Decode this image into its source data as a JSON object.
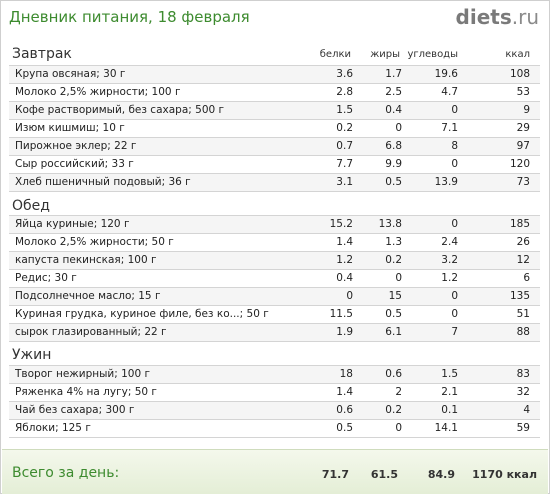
{
  "header": {
    "title": "Дневник питания, 18 февраля",
    "logo_main": "diets",
    "logo_tld": ".ru"
  },
  "columns": {
    "protein": "белки",
    "fat": "жиры",
    "carbs": "углеводы",
    "kcal": "ккал"
  },
  "sections": [
    {
      "title": "Завтрак",
      "rows": [
        {
          "name": "Крупа овсяная; 30 г",
          "protein": "3.6",
          "fat": "1.7",
          "carbs": "19.6",
          "kcal": "108"
        },
        {
          "name": "Молоко 2,5% жирности; 100 г",
          "protein": "2.8",
          "fat": "2.5",
          "carbs": "4.7",
          "kcal": "53"
        },
        {
          "name": "Кофе растворимый, без сахара; 500 г",
          "protein": "1.5",
          "fat": "0.4",
          "carbs": "0",
          "kcal": "9"
        },
        {
          "name": "Изюм кишмиш; 10 г",
          "protein": "0.2",
          "fat": "0",
          "carbs": "7.1",
          "kcal": "29"
        },
        {
          "name": "Пирожное эклер; 22 г",
          "protein": "0.7",
          "fat": "6.8",
          "carbs": "8",
          "kcal": "97"
        },
        {
          "name": "Сыр российский; 33 г",
          "protein": "7.7",
          "fat": "9.9",
          "carbs": "0",
          "kcal": "120"
        },
        {
          "name": "Хлеб пшеничный подовый; 36 г",
          "protein": "3.1",
          "fat": "0.5",
          "carbs": "13.9",
          "kcal": "73"
        }
      ]
    },
    {
      "title": "Обед",
      "rows": [
        {
          "name": "Яйца куриные; 120 г",
          "protein": "15.2",
          "fat": "13.8",
          "carbs": "0",
          "kcal": "185"
        },
        {
          "name": "Молоко 2,5% жирности; 50 г",
          "protein": "1.4",
          "fat": "1.3",
          "carbs": "2.4",
          "kcal": "26"
        },
        {
          "name": "капуста пекинская; 100 г",
          "protein": "1.2",
          "fat": "0.2",
          "carbs": "3.2",
          "kcal": "12"
        },
        {
          "name": "Редис; 30 г",
          "protein": "0.4",
          "fat": "0",
          "carbs": "1.2",
          "kcal": "6"
        },
        {
          "name": "Подсолнечное масло; 15 г",
          "protein": "0",
          "fat": "15",
          "carbs": "0",
          "kcal": "135"
        },
        {
          "name": "Куриная грудка, куриное филе, без ко...; 50 г",
          "protein": "11.5",
          "fat": "0.5",
          "carbs": "0",
          "kcal": "51"
        },
        {
          "name": "сырок глазированный; 22 г",
          "protein": "1.9",
          "fat": "6.1",
          "carbs": "7",
          "kcal": "88"
        }
      ]
    },
    {
      "title": "Ужин",
      "rows": [
        {
          "name": "Творог нежирный; 100 г",
          "protein": "18",
          "fat": "0.6",
          "carbs": "1.5",
          "kcal": "83"
        },
        {
          "name": "Ряженка 4% на лугу; 50 г",
          "protein": "1.4",
          "fat": "2",
          "carbs": "2.1",
          "kcal": "32"
        },
        {
          "name": "Чай без сахара; 300 г",
          "protein": "0.6",
          "fat": "0.2",
          "carbs": "0.1",
          "kcal": "4"
        },
        {
          "name": "Яблоки; 125 г",
          "protein": "0.5",
          "fat": "0",
          "carbs": "14.1",
          "kcal": "59"
        }
      ]
    }
  ],
  "totals": {
    "label": "Всего за день:",
    "protein": "71.7",
    "fat": "61.5",
    "carbs": "84.9",
    "kcal": "1170 ккал"
  },
  "colors": {
    "accent_green": "#3d8b2f",
    "footer_bg": "#e4eed6",
    "row_alt": "#f5f5f5"
  }
}
